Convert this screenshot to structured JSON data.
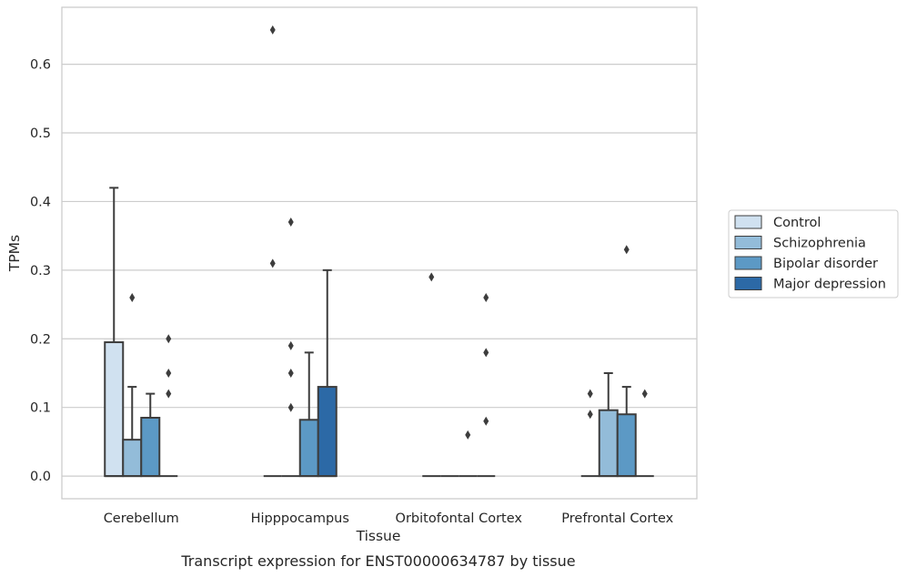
{
  "caption": "Transcript expression for ENST00000634787 by tissue",
  "colors": {
    "grid": "#cccccc",
    "frame": "#cccccc",
    "box_edge": "#3d3d3d",
    "text": "#262626"
  },
  "chart_data": {
    "type": "box",
    "title": "",
    "xlabel": "Tissue",
    "ylabel": "TPMs",
    "ylim": [
      -0.033,
      0.683
    ],
    "yticks": [
      0.0,
      0.1,
      0.2,
      0.3,
      0.4,
      0.5,
      0.6
    ],
    "ytick_labels": [
      "0.0",
      "0.1",
      "0.2",
      "0.3",
      "0.4",
      "0.5",
      "0.6"
    ],
    "grid": true,
    "legend_position": "right",
    "categories": [
      "Cerebellum",
      "Hipppocampus",
      "Orbitofontal Cortex",
      "Prefrontal Cortex"
    ],
    "series": [
      {
        "name": "Control",
        "color": "#d0e1f0",
        "boxes": [
          {
            "q1": 0.0,
            "median": 0.0,
            "q3": 0.195,
            "whisker_low": 0.0,
            "whisker_high": 0.42,
            "outliers": []
          },
          {
            "q1": 0.0,
            "median": 0.0,
            "q3": 0.0,
            "whisker_low": 0.0,
            "whisker_high": 0.0,
            "outliers": [
              0.31,
              0.65
            ]
          },
          {
            "q1": 0.0,
            "median": 0.0,
            "q3": 0.0,
            "whisker_low": 0.0,
            "whisker_high": 0.0,
            "outliers": [
              0.29
            ]
          },
          {
            "q1": 0.0,
            "median": 0.0,
            "q3": 0.0,
            "whisker_low": 0.0,
            "whisker_high": 0.0,
            "outliers": [
              0.09,
              0.12
            ]
          }
        ]
      },
      {
        "name": "Schizophrenia",
        "color": "#93bcd9",
        "boxes": [
          {
            "q1": 0.0,
            "median": 0.0,
            "q3": 0.053,
            "whisker_low": 0.0,
            "whisker_high": 0.13,
            "outliers": [
              0.26
            ]
          },
          {
            "q1": 0.0,
            "median": 0.0,
            "q3": 0.0,
            "whisker_low": 0.0,
            "whisker_high": 0.0,
            "outliers": [
              0.1,
              0.15,
              0.19,
              0.37
            ]
          },
          {
            "q1": 0.0,
            "median": 0.0,
            "q3": 0.0,
            "whisker_low": 0.0,
            "whisker_high": 0.0,
            "outliers": []
          },
          {
            "q1": 0.0,
            "median": 0.0,
            "q3": 0.096,
            "whisker_low": 0.0,
            "whisker_high": 0.15,
            "outliers": []
          }
        ]
      },
      {
        "name": "Bipolar disorder",
        "color": "#5c99c5",
        "boxes": [
          {
            "q1": 0.0,
            "median": 0.0,
            "q3": 0.085,
            "whisker_low": 0.0,
            "whisker_high": 0.12,
            "outliers": []
          },
          {
            "q1": 0.0,
            "median": 0.0,
            "q3": 0.082,
            "whisker_low": 0.0,
            "whisker_high": 0.18,
            "outliers": []
          },
          {
            "q1": 0.0,
            "median": 0.0,
            "q3": 0.0,
            "whisker_low": 0.0,
            "whisker_high": 0.0,
            "outliers": [
              0.06
            ]
          },
          {
            "q1": 0.0,
            "median": 0.0,
            "q3": 0.09,
            "whisker_low": 0.0,
            "whisker_high": 0.13,
            "outliers": [
              0.33
            ]
          }
        ]
      },
      {
        "name": "Major depression",
        "color": "#2c69a6",
        "boxes": [
          {
            "q1": 0.0,
            "median": 0.0,
            "q3": 0.0,
            "whisker_low": 0.0,
            "whisker_high": 0.0,
            "outliers": [
              0.12,
              0.15,
              0.2
            ]
          },
          {
            "q1": 0.0,
            "median": 0.0,
            "q3": 0.13,
            "whisker_low": 0.0,
            "whisker_high": 0.3,
            "outliers": []
          },
          {
            "q1": 0.0,
            "median": 0.0,
            "q3": 0.0,
            "whisker_low": 0.0,
            "whisker_high": 0.0,
            "outliers": [
              0.08,
              0.18,
              0.26
            ]
          },
          {
            "q1": 0.0,
            "median": 0.0,
            "q3": 0.0,
            "whisker_low": 0.0,
            "whisker_high": 0.0,
            "outliers": [
              0.12
            ]
          }
        ]
      }
    ]
  }
}
